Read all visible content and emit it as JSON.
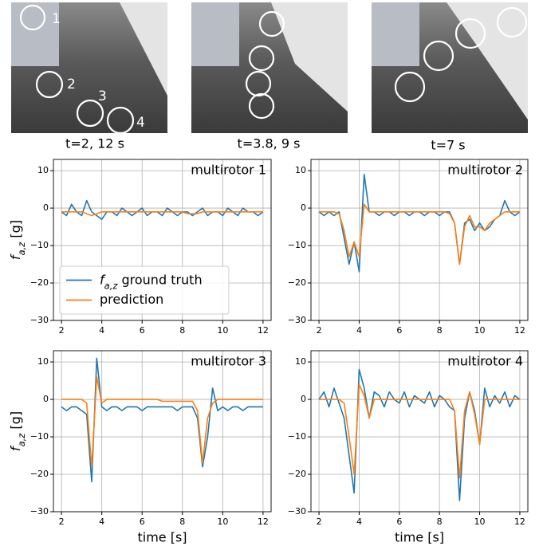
{
  "photos": [
    {
      "caption": "t=2, 12 s",
      "labels": [
        "1",
        "2",
        "3",
        "4"
      ]
    },
    {
      "caption": "t=3.8, 9 s"
    },
    {
      "caption": "t=7 s"
    }
  ],
  "chart_data": [
    {
      "type": "line",
      "title": "multirotor 1",
      "ylabel": "fa,z [g]",
      "legend": "lower left",
      "grid": true,
      "xlim": [
        1.6,
        12.4
      ],
      "xticks": [
        2,
        4,
        6,
        8,
        10,
        12
      ],
      "ylim": [
        -30,
        13
      ],
      "yticks": [
        {
          "value": -30,
          "label": "−30"
        },
        {
          "value": -20,
          "label": "−20"
        },
        {
          "value": -10,
          "label": "−10"
        },
        0,
        10
      ],
      "x": [
        2,
        2.25,
        2.5,
        2.75,
        3,
        3.25,
        3.5,
        3.75,
        4,
        4.25,
        4.5,
        4.75,
        5,
        5.25,
        5.5,
        5.75,
        6,
        6.25,
        6.5,
        6.75,
        7,
        7.25,
        7.5,
        7.75,
        8,
        8.25,
        8.5,
        8.75,
        9,
        9.25,
        9.5,
        9.75,
        10,
        10.25,
        10.5,
        10.75,
        11,
        11.25,
        11.5,
        11.75,
        12
      ],
      "series": [
        {
          "name": "fa,z ground truth",
          "color": "#1f77b4",
          "values": [
            -1,
            -2,
            1,
            -1,
            -2,
            2,
            -1,
            -2,
            -3,
            -1,
            -1,
            -2,
            0,
            -1,
            -2,
            -1,
            0,
            -2,
            -1,
            -1,
            -2,
            0,
            -1,
            -2,
            -1,
            -1,
            -2,
            -1,
            0,
            -2,
            -1,
            -1,
            -2,
            0,
            -1,
            -2,
            0,
            -1,
            -1,
            -2,
            -1
          ]
        },
        {
          "name": "prediction",
          "color": "#ff7f0e",
          "values": [
            -1,
            -1,
            -1,
            -1,
            -1,
            -1.5,
            -2,
            -1.5,
            -1,
            -1,
            -1,
            -1,
            -1,
            -1,
            -1,
            -1,
            -1,
            -1,
            -1,
            -1,
            -1,
            -1,
            -1,
            -1,
            -1,
            -1.5,
            -1.5,
            -1.5,
            -1,
            -1,
            -1,
            -1,
            -1,
            -1,
            -1,
            -1,
            -1,
            -1,
            -1,
            -1,
            -1
          ]
        }
      ]
    },
    {
      "type": "line",
      "title": "multirotor 2",
      "grid": true,
      "xlim": [
        1.6,
        12.4
      ],
      "xticks": [
        2,
        4,
        6,
        8,
        10,
        12
      ],
      "ylim": [
        -30,
        13
      ],
      "yticks": [
        {
          "value": -30,
          "label": "−30"
        },
        {
          "value": -20,
          "label": "−20"
        },
        {
          "value": -10,
          "label": "−10"
        },
        0,
        10
      ],
      "x": [
        2,
        2.25,
        2.5,
        2.75,
        3,
        3.25,
        3.5,
        3.75,
        4,
        4.25,
        4.5,
        4.75,
        5,
        5.25,
        5.5,
        5.75,
        6,
        6.25,
        6.5,
        6.75,
        7,
        7.25,
        7.5,
        7.75,
        8,
        8.25,
        8.5,
        8.75,
        9,
        9.25,
        9.5,
        9.75,
        10,
        10.25,
        10.5,
        10.75,
        11,
        11.25,
        11.5,
        11.75,
        12
      ],
      "series": [
        {
          "color": "#1f77b4",
          "values": [
            -1,
            -2,
            -1,
            -2,
            -1,
            -8,
            -15,
            -9,
            -17,
            9,
            -1,
            -1,
            -2,
            -1,
            -1,
            -2,
            -1,
            -1,
            -2,
            -1,
            -1,
            -2,
            -1,
            -1,
            -2,
            -1,
            -1,
            -4,
            -15,
            -4,
            -3,
            -6,
            -4,
            -6,
            -5,
            -3,
            -2,
            2,
            -1,
            -2,
            -1
          ]
        },
        {
          "color": "#ff7f0e",
          "values": [
            -1,
            -1,
            -1,
            -1,
            -1.5,
            -6,
            -13,
            -9,
            -13,
            1,
            -1,
            -1,
            -1,
            -1,
            -1,
            -1,
            -1,
            -1,
            -1,
            -1,
            -1,
            -1,
            -1,
            -1,
            -1,
            -1,
            -1.5,
            -4,
            -15,
            -5,
            -2,
            -5,
            -5,
            -6,
            -4,
            -3,
            -2,
            -1,
            -1,
            -1,
            -1
          ]
        }
      ]
    },
    {
      "type": "line",
      "title": "multirotor 3",
      "ylabel": "fa,z [g]",
      "xlabel": "time [s]",
      "grid": true,
      "xlim": [
        1.6,
        12.4
      ],
      "xticks": [
        2,
        4,
        6,
        8,
        10,
        12
      ],
      "ylim": [
        -30,
        13
      ],
      "yticks": [
        {
          "value": -30,
          "label": "−30"
        },
        {
          "value": -20,
          "label": "−20"
        },
        {
          "value": -10,
          "label": "−10"
        },
        0,
        10
      ],
      "x": [
        2,
        2.25,
        2.5,
        2.75,
        3,
        3.25,
        3.5,
        3.75,
        4,
        4.25,
        4.5,
        4.75,
        5,
        5.25,
        5.5,
        5.75,
        6,
        6.25,
        6.5,
        6.75,
        7,
        7.25,
        7.5,
        7.75,
        8,
        8.25,
        8.5,
        8.75,
        9,
        9.25,
        9.5,
        9.75,
        10,
        10.25,
        10.5,
        10.75,
        11,
        11.25,
        11.5,
        11.75,
        12
      ],
      "series": [
        {
          "color": "#1f77b4",
          "values": [
            -2,
            -3,
            -2,
            -2,
            -3,
            -4,
            -22,
            11,
            -2,
            -3,
            -2,
            -2,
            -3,
            -2,
            -2,
            -2,
            -3,
            -2,
            -2,
            -2,
            -2,
            -2,
            -2,
            -3,
            -2,
            -2,
            -2,
            -5,
            -18,
            -10,
            3,
            -3,
            -2,
            -3,
            -2,
            -2,
            -3,
            -2,
            -2,
            -2,
            -2
          ]
        },
        {
          "color": "#ff7f0e",
          "values": [
            0,
            0,
            0,
            0,
            0,
            -1,
            -18,
            6,
            -1,
            0,
            0,
            0,
            0,
            0,
            0,
            0,
            0,
            0,
            0,
            0,
            -0.5,
            -0.5,
            -0.5,
            -0.5,
            -0.5,
            -0.5,
            -0.5,
            -3,
            -17,
            -5,
            -1,
            0,
            0,
            0,
            0,
            0,
            0,
            0,
            0,
            0,
            0
          ]
        }
      ]
    },
    {
      "type": "line",
      "title": "multirotor 4",
      "xlabel": "time [s]",
      "grid": true,
      "xlim": [
        1.6,
        12.4
      ],
      "xticks": [
        2,
        4,
        6,
        8,
        10,
        12
      ],
      "ylim": [
        -30,
        13
      ],
      "yticks": [
        {
          "value": -30,
          "label": "−30"
        },
        {
          "value": -20,
          "label": "−20"
        },
        {
          "value": -10,
          "label": "−10"
        },
        0,
        10
      ],
      "x": [
        2,
        2.25,
        2.5,
        2.75,
        3,
        3.25,
        3.5,
        3.75,
        4,
        4.25,
        4.5,
        4.75,
        5,
        5.25,
        5.5,
        5.75,
        6,
        6.25,
        6.5,
        6.75,
        7,
        7.25,
        7.5,
        7.75,
        8,
        8.25,
        8.5,
        8.75,
        9,
        9.25,
        9.5,
        9.75,
        10,
        10.25,
        10.5,
        10.75,
        11,
        11.25,
        11.5,
        11.75,
        12
      ],
      "series": [
        {
          "color": "#1f77b4",
          "values": [
            0,
            2,
            -2,
            3,
            -1,
            -5,
            -15,
            -25,
            8,
            3,
            -5,
            2,
            1,
            -2,
            2,
            0,
            -1,
            2,
            -2,
            1,
            0,
            -1,
            2,
            -2,
            1,
            0,
            -2,
            -3,
            -27,
            -5,
            2,
            -3,
            -12,
            3,
            -2,
            1,
            -1,
            2,
            -2,
            1,
            0
          ]
        },
        {
          "color": "#ff7f0e",
          "values": [
            0,
            0,
            0,
            0,
            0,
            -1,
            -10,
            -20,
            4,
            1,
            -5,
            0,
            0,
            0,
            0,
            0,
            0,
            0,
            0,
            0,
            0,
            0,
            0,
            0,
            0,
            0,
            0,
            -3,
            -21,
            -3,
            2,
            -4,
            -12,
            0,
            0,
            0,
            0,
            0,
            0,
            0,
            0
          ]
        }
      ]
    }
  ]
}
